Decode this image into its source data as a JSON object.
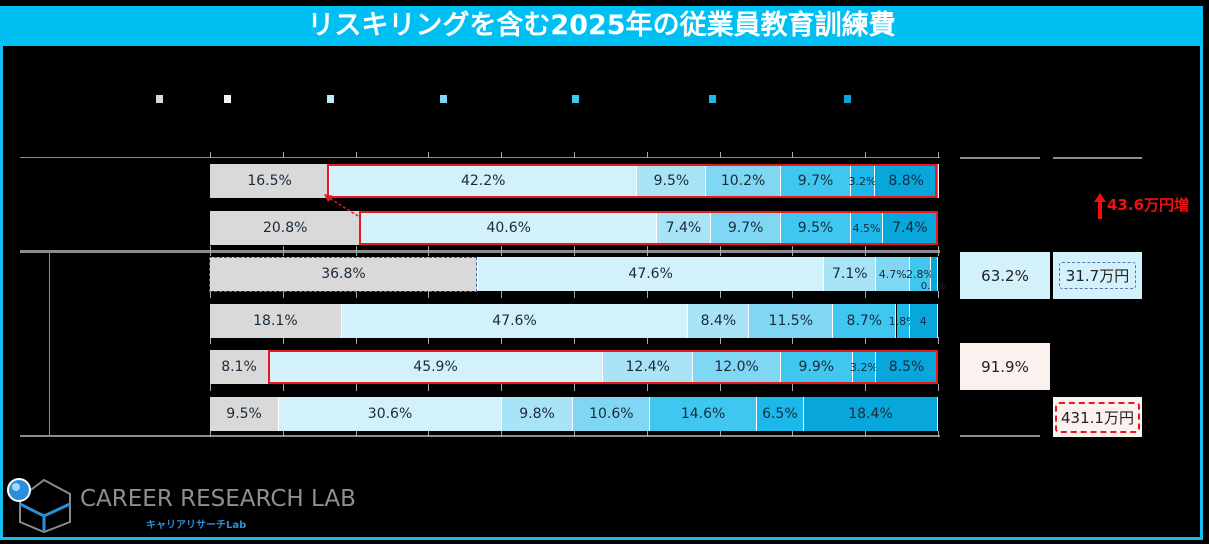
{
  "title": "リスキリングを含む2025年の従業員教育訓練費",
  "colors": [
    "#d9d9d9",
    "#d3f1fb",
    "#a8e4f6",
    "#80d7f3",
    "#40c7ef",
    "#1cb8ea",
    "#07a7dc"
  ],
  "legend_colors": [
    "#d9d9d9",
    "#f2f2f2",
    "#bfeaf8",
    "#80d7f3",
    "#40c7ef",
    "#1cb8ea",
    "#07a7dc"
  ],
  "chart_data": {
    "type": "bar",
    "orientation": "horizontal-stacked-100",
    "xlim": [
      0,
      100
    ],
    "rows": [
      {
        "values": [
          16.5,
          42.2,
          9.5,
          10.2,
          9.7,
          3.2,
          8.8
        ],
        "labels": [
          "16.5%",
          "42.2%",
          "9.5%",
          "10.2%",
          "9.7%",
          "3.2%",
          "8.8%"
        ]
      },
      {
        "values": [
          20.8,
          40.6,
          7.4,
          9.7,
          9.5,
          4.5,
          7.4
        ],
        "labels": [
          "20.8%",
          "40.6%",
          "7.4%",
          "9.7%",
          "9.5%",
          "4.5%",
          "7.4%"
        ]
      },
      {
        "values": [
          36.8,
          47.6,
          7.1,
          4.7,
          2.8,
          0.0,
          1.0
        ],
        "labels": [
          "36.8%",
          "47.6%",
          "7.1%",
          "4.7%",
          "2.8%",
          "0.0%",
          ""
        ]
      },
      {
        "values": [
          18.1,
          47.6,
          8.4,
          11.5,
          8.7,
          1.8,
          3.9
        ],
        "labels": [
          "18.1%",
          "47.6%",
          "8.4%",
          "11.5%",
          "8.7%",
          "1.8%",
          "4"
        ]
      },
      {
        "values": [
          8.1,
          45.9,
          12.4,
          12.0,
          9.9,
          3.2,
          8.5
        ],
        "labels": [
          "8.1%",
          "45.9%",
          "12.4%",
          "12.0%",
          "9.9%",
          "3.2%",
          "8.5%"
        ]
      },
      {
        "values": [
          9.5,
          30.6,
          9.8,
          10.6,
          14.6,
          6.5,
          18.4
        ],
        "labels": [
          "9.5%",
          "30.6%",
          "9.8%",
          "10.6%",
          "14.6%",
          "6.5%",
          "18.4%"
        ]
      }
    ]
  },
  "side": {
    "increase": "43.6万円増",
    "row3_rate": "63.2%",
    "row3_amount": "31.7万円",
    "row5_rate": "91.9%",
    "row6_amount": "431.1万円"
  },
  "logo": {
    "name": "CAREER RESEARCH LAB",
    "sub": "キャリアリサーチLab"
  }
}
